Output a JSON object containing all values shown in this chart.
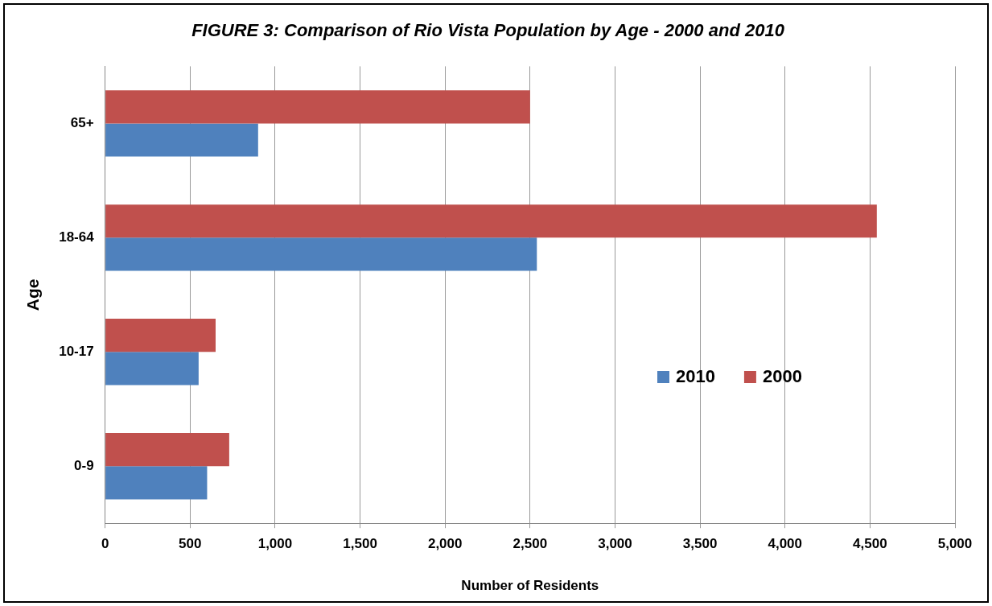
{
  "chart_data": {
    "type": "bar",
    "orientation": "horizontal",
    "title": "FIGURE 3: Comparison of Rio Vista Population by Age - 2000 and 2010",
    "xlabel": "Number of Residents",
    "ylabel": "Age",
    "categories": [
      "65+",
      "18-64",
      "10-17",
      "0-9"
    ],
    "series": [
      {
        "name": "2010",
        "color": "#4f81bd",
        "values": [
          900,
          2540,
          550,
          600
        ]
      },
      {
        "name": "2000",
        "color": "#c0504d",
        "values": [
          2500,
          4540,
          650,
          730
        ]
      }
    ],
    "xlim": [
      0,
      5000
    ],
    "xticks": [
      {
        "value": 0,
        "label": "0"
      },
      {
        "value": 500,
        "label": "500"
      },
      {
        "value": 1000,
        "label": "1,000"
      },
      {
        "value": 1500,
        "label": "1,500"
      },
      {
        "value": 2000,
        "label": "2,000"
      },
      {
        "value": 2500,
        "label": "2,500"
      },
      {
        "value": 3000,
        "label": "3,000"
      },
      {
        "value": 3500,
        "label": "3,500"
      },
      {
        "value": 4000,
        "label": "4,000"
      },
      {
        "value": 4500,
        "label": "4,500"
      },
      {
        "value": 5000,
        "label": "5,000"
      }
    ],
    "grid": "x",
    "legend": "right"
  }
}
